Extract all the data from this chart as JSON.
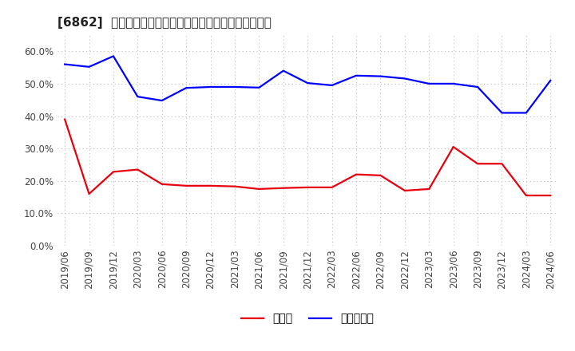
{
  "title": "[6862]  現預金、有利子負債の総資産に対する比率の推移",
  "x_labels": [
    "2019/06",
    "2019/09",
    "2019/12",
    "2020/03",
    "2020/06",
    "2020/09",
    "2020/12",
    "2021/03",
    "2021/06",
    "2021/09",
    "2021/12",
    "2022/03",
    "2022/06",
    "2022/09",
    "2022/12",
    "2023/03",
    "2023/06",
    "2023/09",
    "2023/12",
    "2024/03",
    "2024/06"
  ],
  "cash": [
    0.39,
    0.16,
    0.228,
    0.235,
    0.19,
    0.185,
    0.185,
    0.183,
    0.175,
    0.178,
    0.18,
    0.18,
    0.22,
    0.217,
    0.17,
    0.175,
    0.305,
    0.253,
    0.253,
    0.155,
    0.155
  ],
  "debt": [
    0.56,
    0.552,
    0.585,
    0.46,
    0.448,
    0.487,
    0.49,
    0.49,
    0.488,
    0.54,
    0.502,
    0.495,
    0.525,
    0.523,
    0.516,
    0.5,
    0.5,
    0.49,
    0.41,
    0.41,
    0.51
  ],
  "cash_color": "#e8000d",
  "debt_color": "#0000ff",
  "background_color": "#ffffff",
  "grid_color": "#bbbbbb",
  "ylim": [
    0.0,
    0.65
  ],
  "yticks": [
    0.0,
    0.1,
    0.2,
    0.3,
    0.4,
    0.5,
    0.6
  ],
  "legend_cash": "現預金",
  "legend_debt": "有利子負債",
  "title_fontsize": 11,
  "label_fontsize": 8.5
}
